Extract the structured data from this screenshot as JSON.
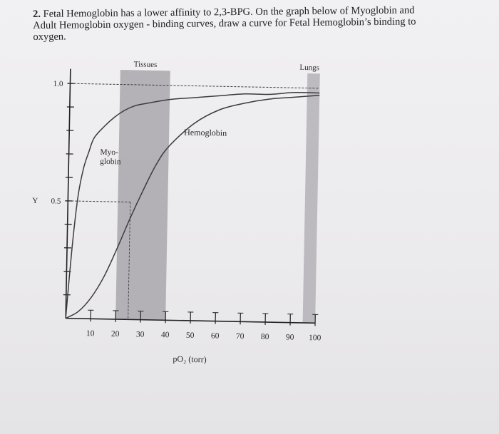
{
  "question": {
    "number": "2.",
    "lines": [
      "Fetal Hemoglobin has a lower affinity to 2,3-BPG. On the graph below of Myoglobin and",
      "Adult Hemoglobin oxygen - binding curves, draw a curve for Fetal Hemoglobin’s binding to",
      "oxygen."
    ]
  },
  "chart_data": {
    "type": "line",
    "xlabel": "pO₂ (torr)",
    "ylabel": "Y",
    "x_ticks": [
      "10",
      "20",
      "30",
      "40",
      "50",
      "60",
      "70",
      "80",
      "90",
      "100"
    ],
    "y_ticks": [
      "0.5",
      "1.0"
    ],
    "xlim": [
      0,
      100
    ],
    "ylim": [
      0,
      1.05
    ],
    "regions": [
      {
        "label": "Tissues",
        "x_range": [
          20,
          40
        ]
      },
      {
        "label": "Lungs",
        "x_range": [
          95,
          100
        ]
      }
    ],
    "series": [
      {
        "name": "Myo-\nglobin",
        "x": [
          0,
          2,
          4,
          6,
          8,
          10,
          14,
          18,
          22,
          26,
          30,
          40,
          50,
          60,
          70,
          80,
          90,
          100
        ],
        "y": [
          0,
          0.3,
          0.52,
          0.64,
          0.71,
          0.77,
          0.82,
          0.86,
          0.89,
          0.91,
          0.92,
          0.94,
          0.95,
          0.96,
          0.97,
          0.97,
          0.98,
          0.98
        ]
      },
      {
        "name": "Hemoglobin",
        "x": [
          0,
          5,
          10,
          15,
          20,
          25,
          30,
          35,
          40,
          50,
          60,
          70,
          80,
          90,
          100
        ],
        "y": [
          0,
          0.03,
          0.09,
          0.18,
          0.3,
          0.43,
          0.55,
          0.66,
          0.74,
          0.84,
          0.9,
          0.93,
          0.95,
          0.96,
          0.97
        ]
      }
    ],
    "reference_lines": [
      {
        "axis": "y",
        "value": 1.0
      },
      {
        "axis": "y",
        "value": 0.5
      }
    ]
  }
}
